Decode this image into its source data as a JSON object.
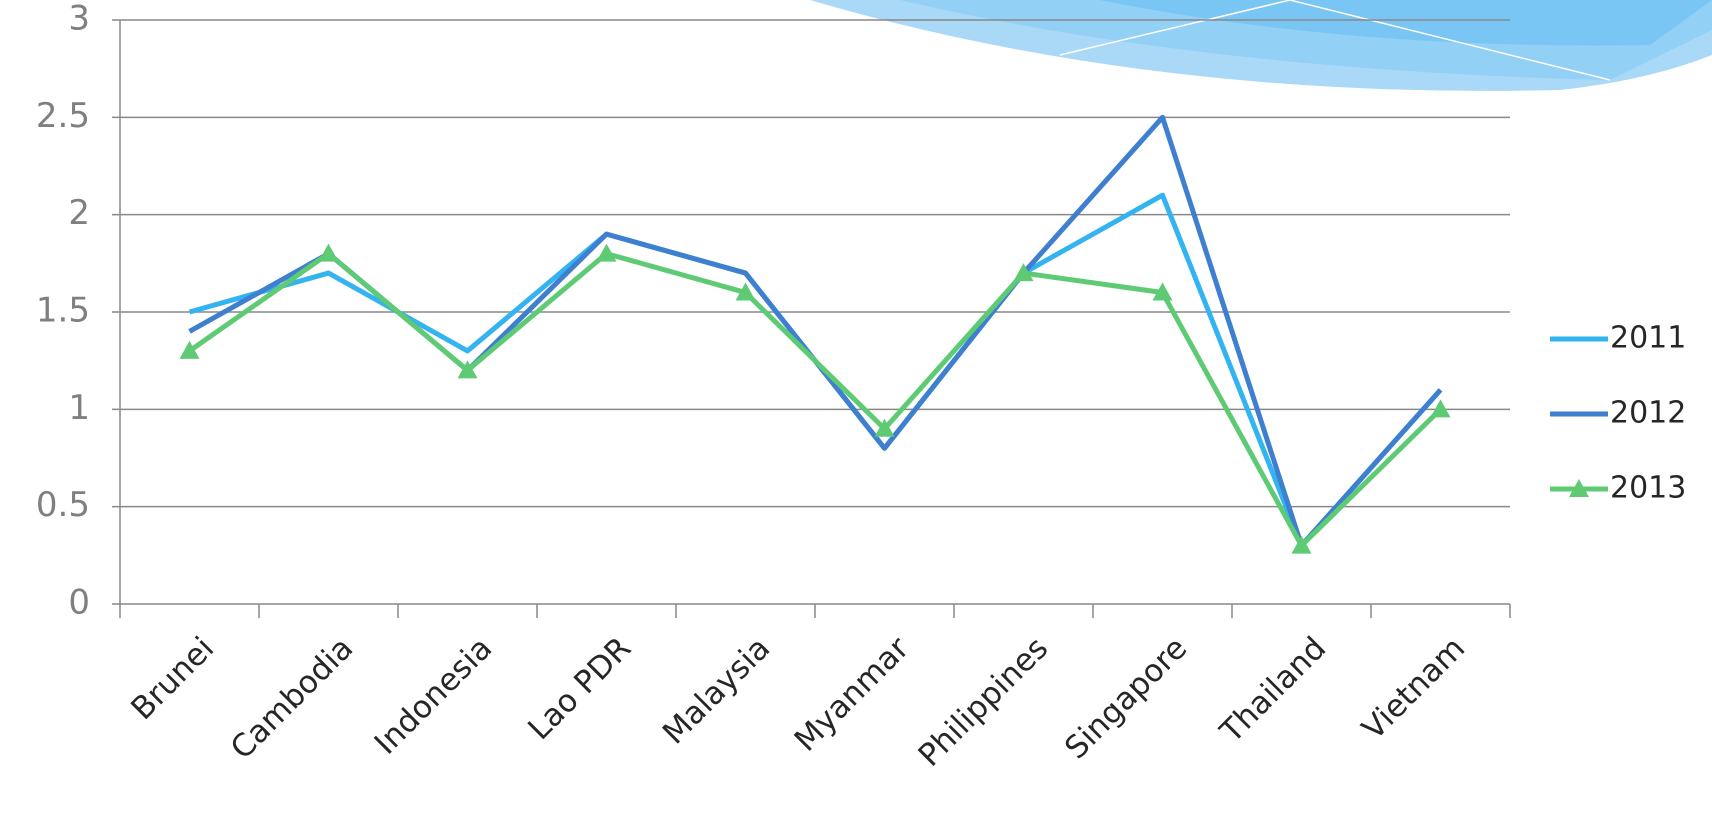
{
  "chart_data": {
    "type": "line",
    "categories": [
      "Brunei",
      "Cambodia",
      "Indonesia",
      "Lao PDR",
      "Malaysia",
      "Myanmar",
      "Philippines",
      "Singapore",
      "Thailand",
      "Vietnam"
    ],
    "series": [
      {
        "name": "2011",
        "color": "#33b3f0",
        "values": [
          1.5,
          1.7,
          1.3,
          1.9,
          1.7,
          0.8,
          1.7,
          2.1,
          0.3,
          1.1
        ]
      },
      {
        "name": "2012",
        "color": "#3f7fd0",
        "values": [
          1.4,
          1.8,
          1.2,
          1.9,
          1.7,
          0.8,
          1.7,
          2.5,
          0.3,
          1.1
        ]
      },
      {
        "name": "2013",
        "color": "#5ecb74",
        "marker": "triangle",
        "values": [
          1.3,
          1.8,
          1.2,
          1.8,
          1.6,
          0.9,
          1.7,
          1.6,
          0.3,
          1.0
        ]
      }
    ],
    "ylim": [
      0,
      3
    ],
    "yticks": [
      0,
      0.5,
      1,
      1.5,
      2,
      2.5,
      3
    ],
    "grid": true,
    "legend": "right"
  }
}
